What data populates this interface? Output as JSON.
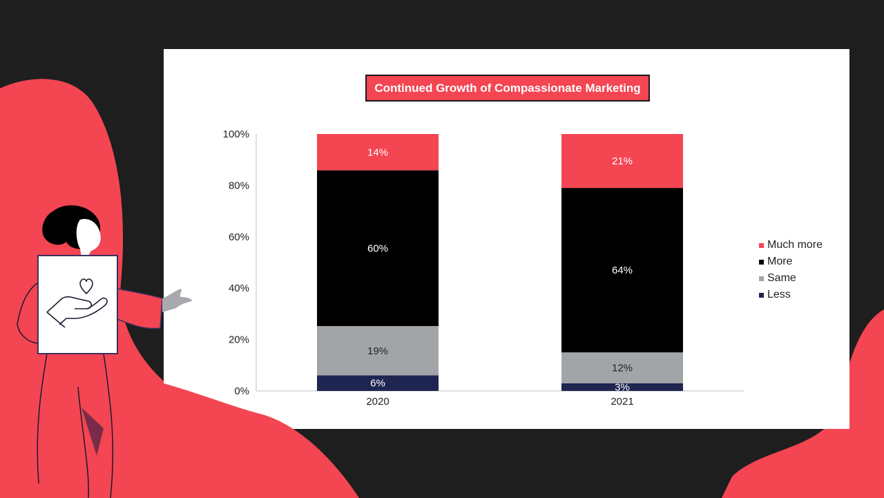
{
  "colors": {
    "background": "#1e1e1e",
    "accent": "#f34552",
    "panel": "#ffffff"
  },
  "illustration": {
    "sign_icon": "heart-in-hand-icon"
  },
  "chart_data": {
    "type": "bar",
    "stacked": true,
    "title": "Continued Growth of Compassionate Marketing",
    "title_bg": "#f34552",
    "categories": [
      "2020",
      "2021"
    ],
    "y_ticks": [
      "0%",
      "20%",
      "40%",
      "60%",
      "80%",
      "100%"
    ],
    "ylim": [
      0,
      100
    ],
    "grid": false,
    "legend_position": "right",
    "series": [
      {
        "name": "Less",
        "color": "#1f2551",
        "label_color": "#ffffff",
        "values": [
          6,
          3
        ],
        "labels": [
          "6%",
          "3%"
        ]
      },
      {
        "name": "Same",
        "color": "#a2a5a8",
        "label_color": "#222222",
        "values": [
          19,
          12
        ],
        "labels": [
          "19%",
          "12%"
        ]
      },
      {
        "name": "More",
        "color": "#000000",
        "label_color": "#ffffff",
        "values": [
          60,
          64
        ],
        "labels": [
          "60%",
          "64%"
        ]
      },
      {
        "name": "Much more",
        "color": "#f34552",
        "label_color": "#ffffff",
        "values": [
          14,
          21
        ],
        "labels": [
          "14%",
          "21%"
        ]
      }
    ],
    "legend_order": [
      "Much more",
      "More",
      "Same",
      "Less"
    ]
  }
}
